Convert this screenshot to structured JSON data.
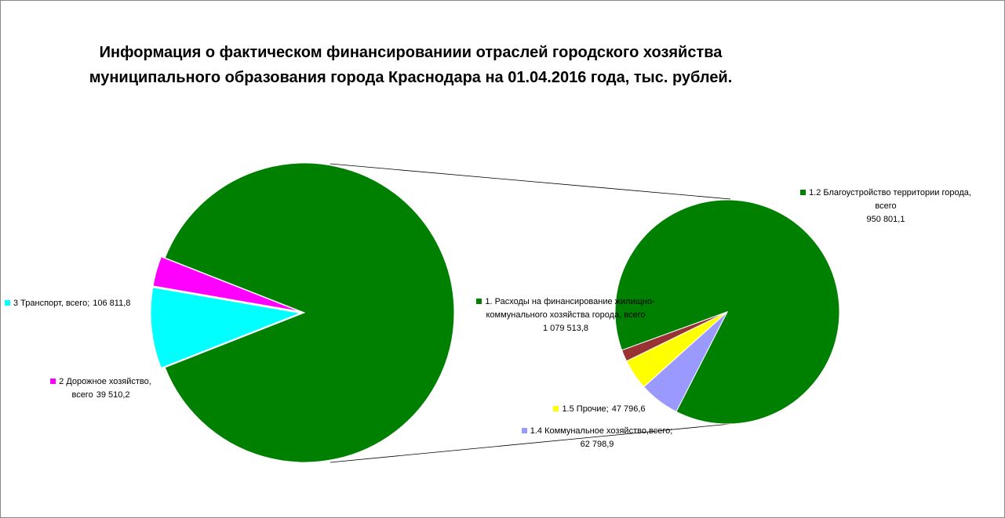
{
  "chart_data": {
    "type": "pie-of-pie",
    "title": [
      "Информация о фактическом финансированиии отраслей городского  хозяйства",
      "муниципального образования города Краснодара на 01.04.2016 года, тыс. рублей."
    ],
    "pie": {
      "categories": [
        "1. Расходы на финансирование жилищно-коммунального  хозяйства города, всего",
        "3 Транспорт, всего;",
        "2 Дорожное хозяйство, всего"
      ],
      "values": [
        1079513.8,
        106811.8,
        39510.2
      ],
      "value_labels": [
        "1 079 513,8",
        "106 811,8",
        "39 510,2"
      ],
      "colors": [
        "#008000",
        "#00ffff",
        "#ff00ff"
      ]
    },
    "subpie": {
      "categories": [
        "1.2 Благоустройство территории города, всего",
        "1.4 Коммунальное хозяйство,всего;",
        "1.5 Прочие;",
        null
      ],
      "values": [
        950801.1,
        62798.9,
        47796.6,
        18117.2
      ],
      "value_labels": [
        "950 801,1",
        "62 798,9",
        "47 796,6",
        null
      ],
      "colors": [
        "#008000",
        "#9999ff",
        "#ffff00",
        "#993333"
      ]
    }
  }
}
